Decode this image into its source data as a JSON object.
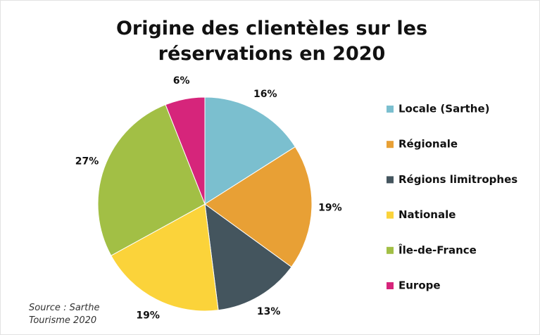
{
  "chart_data": {
    "type": "pie",
    "title": "Origine des clientèles sur les réservations en 2020",
    "source": "Source : Sarthe Tourisme 2020",
    "categories": [
      "Locale (Sarthe)",
      "Régionale",
      "Régions limitrophes",
      "Nationale",
      "Île-de-France",
      "Europe"
    ],
    "values": [
      16,
      19,
      13,
      19,
      27,
      6
    ],
    "value_labels": [
      "16%",
      "19%",
      "13%",
      "19%",
      "27%",
      "6%"
    ],
    "colors": [
      "#7bbfcf",
      "#e8a035",
      "#44555e",
      "#fbd33a",
      "#a2bf45",
      "#d6257b"
    ],
    "legend": "right"
  }
}
